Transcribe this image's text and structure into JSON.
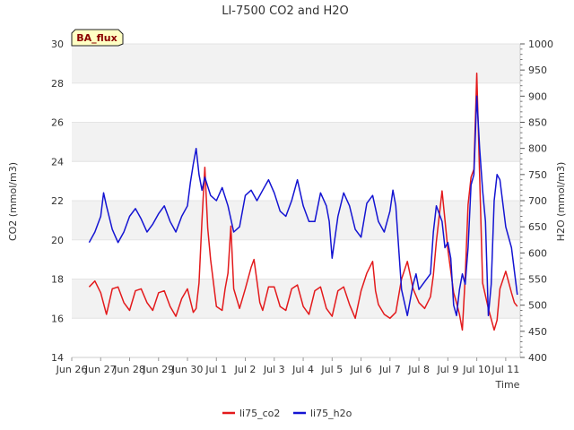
{
  "chart_data": {
    "type": "line",
    "title": "LI-7500 CO2 and H2O",
    "xlabel": "Time",
    "ylabel_left": "CO2 (mmol/m3)",
    "ylabel_right": "H2O (mmol/m3)",
    "badge": "BA_flux",
    "x_range": [
      25.5,
      41.0
    ],
    "ylim_left": [
      14,
      30
    ],
    "ylim_right": [
      400,
      1000
    ],
    "x_ticks": [
      {
        "v": 25.5,
        "label": "Jun 26"
      },
      {
        "v": 26.5,
        "label": "Jun 27"
      },
      {
        "v": 27.5,
        "label": "Jun 28"
      },
      {
        "v": 28.5,
        "label": "Jun 29"
      },
      {
        "v": 29.5,
        "label": "Jun 30"
      },
      {
        "v": 30.5,
        "label": "Jul 1"
      },
      {
        "v": 31.5,
        "label": "Jul 2"
      },
      {
        "v": 32.5,
        "label": "Jul 3"
      },
      {
        "v": 33.5,
        "label": "Jul 4"
      },
      {
        "v": 34.5,
        "label": "Jul 5"
      },
      {
        "v": 35.5,
        "label": "Jul 6"
      },
      {
        "v": 36.5,
        "label": "Jul 7"
      },
      {
        "v": 37.5,
        "label": "Jul 8"
      },
      {
        "v": 38.5,
        "label": "Jul 9"
      },
      {
        "v": 39.5,
        "label": "Jul 10"
      },
      {
        "v": 40.5,
        "label": "Jul 11"
      }
    ],
    "y_ticks_left": [
      14,
      16,
      18,
      20,
      22,
      24,
      26,
      28,
      30
    ],
    "y_ticks_right": [
      400,
      450,
      500,
      550,
      600,
      650,
      700,
      750,
      800,
      850,
      900,
      950,
      1000
    ],
    "legend_position": "bottom-center",
    "series": [
      {
        "name": "li75_co2",
        "color": "#e31a1c",
        "axis": "left",
        "x": [
          26.1,
          26.3,
          26.5,
          26.7,
          26.9,
          27.1,
          27.3,
          27.5,
          27.7,
          27.9,
          28.1,
          28.3,
          28.5,
          28.7,
          28.9,
          29.1,
          29.3,
          29.5,
          29.7,
          29.8,
          29.9,
          30.0,
          30.1,
          30.2,
          30.3,
          30.5,
          30.7,
          30.8,
          30.9,
          31.0,
          31.1,
          31.3,
          31.5,
          31.7,
          31.8,
          31.9,
          32.0,
          32.1,
          32.3,
          32.5,
          32.7,
          32.9,
          33.1,
          33.3,
          33.5,
          33.7,
          33.9,
          34.1,
          34.3,
          34.5,
          34.7,
          34.9,
          35.1,
          35.3,
          35.5,
          35.7,
          35.9,
          36.0,
          36.1,
          36.3,
          36.5,
          36.7,
          36.9,
          37.1,
          37.3,
          37.5,
          37.7,
          37.9,
          38.0,
          38.1,
          38.2,
          38.3,
          38.5,
          38.7,
          38.8,
          38.9,
          39.0,
          39.1,
          39.2,
          39.3,
          39.4,
          39.5,
          39.7,
          39.9,
          40.1,
          40.2,
          40.3,
          40.5,
          40.7,
          40.8,
          40.9
        ],
        "y": [
          17.6,
          17.9,
          17.3,
          16.2,
          17.5,
          17.6,
          16.8,
          16.4,
          17.4,
          17.5,
          16.8,
          16.4,
          17.3,
          17.4,
          16.6,
          16.1,
          17.0,
          17.5,
          16.3,
          16.5,
          17.8,
          21.0,
          23.7,
          20.6,
          19.0,
          16.6,
          16.4,
          17.5,
          18.3,
          20.7,
          17.5,
          16.5,
          17.5,
          18.6,
          19.0,
          17.9,
          16.8,
          16.4,
          17.6,
          17.6,
          16.6,
          16.4,
          17.5,
          17.7,
          16.6,
          16.2,
          17.4,
          17.6,
          16.5,
          16.1,
          17.4,
          17.6,
          16.7,
          16.0,
          17.4,
          18.3,
          18.9,
          17.4,
          16.7,
          16.2,
          16.0,
          16.3,
          18.0,
          18.9,
          17.5,
          16.8,
          16.5,
          17.1,
          18.2,
          19.9,
          21.2,
          22.5,
          19.5,
          17.3,
          16.8,
          16.2,
          15.4,
          18.1,
          21.8,
          23.2,
          23.6,
          28.5,
          17.8,
          16.5,
          15.4,
          15.9,
          17.5,
          18.4,
          17.3,
          16.8,
          16.6
        ]
      },
      {
        "name": "li75_h2o",
        "color": "#1414d2",
        "axis": "right",
        "x": [
          26.1,
          26.3,
          26.5,
          26.6,
          26.7,
          26.9,
          27.1,
          27.3,
          27.5,
          27.7,
          27.9,
          28.1,
          28.3,
          28.5,
          28.7,
          28.9,
          29.1,
          29.3,
          29.5,
          29.6,
          29.7,
          29.8,
          29.9,
          30.0,
          30.1,
          30.3,
          30.5,
          30.7,
          30.9,
          31.1,
          31.3,
          31.5,
          31.7,
          31.9,
          32.1,
          32.3,
          32.5,
          32.7,
          32.9,
          33.1,
          33.3,
          33.5,
          33.7,
          33.9,
          34.1,
          34.3,
          34.4,
          34.5,
          34.7,
          34.9,
          35.1,
          35.3,
          35.5,
          35.7,
          35.9,
          36.1,
          36.3,
          36.5,
          36.6,
          36.7,
          36.9,
          37.1,
          37.3,
          37.4,
          37.5,
          37.7,
          37.9,
          38.0,
          38.1,
          38.3,
          38.4,
          38.5,
          38.6,
          38.7,
          38.8,
          38.9,
          39.0,
          39.1,
          39.2,
          39.3,
          39.4,
          39.5,
          39.6,
          39.7,
          39.8,
          39.9,
          40.0,
          40.1,
          40.2,
          40.3,
          40.5,
          40.7,
          40.9
        ],
        "y": [
          620,
          640,
          670,
          715,
          690,
          645,
          620,
          640,
          670,
          685,
          665,
          640,
          655,
          675,
          690,
          660,
          640,
          670,
          690,
          735,
          770,
          800,
          750,
          720,
          745,
          710,
          700,
          725,
          690,
          640,
          650,
          710,
          720,
          700,
          720,
          740,
          715,
          680,
          670,
          700,
          740,
          690,
          660,
          660,
          715,
          690,
          660,
          590,
          670,
          715,
          690,
          645,
          630,
          695,
          710,
          660,
          640,
          680,
          720,
          690,
          530,
          480,
          540,
          560,
          530,
          545,
          560,
          640,
          690,
          660,
          610,
          620,
          590,
          500,
          480,
          530,
          560,
          540,
          610,
          730,
          750,
          900,
          800,
          720,
          660,
          480,
          540,
          700,
          750,
          740,
          650,
          610,
          520
        ]
      }
    ]
  }
}
